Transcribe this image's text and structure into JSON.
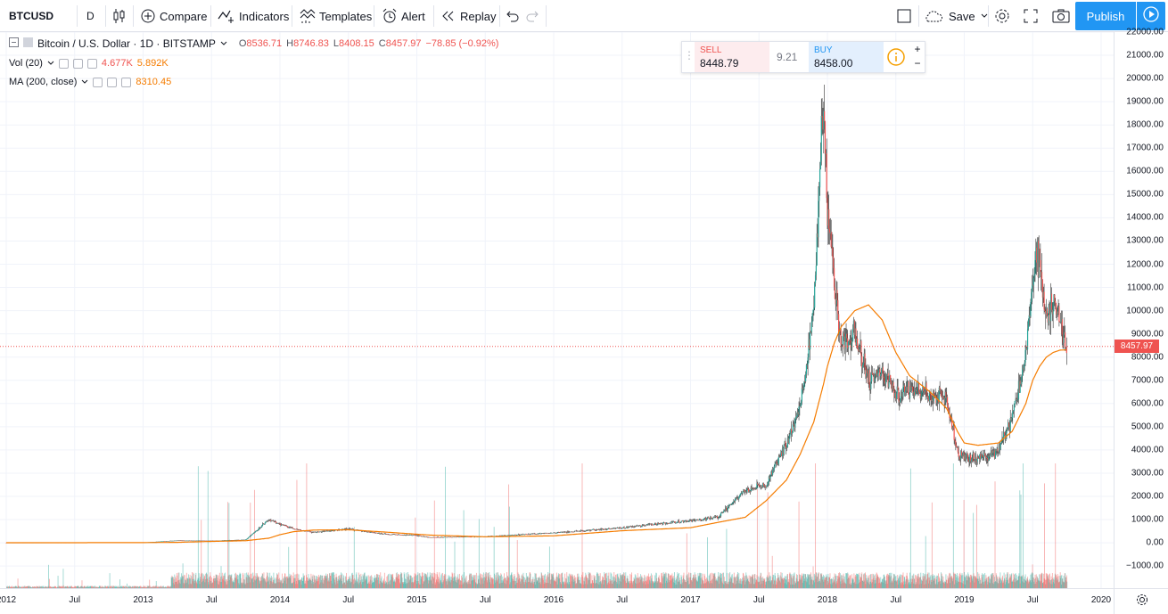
{
  "toolbar": {
    "symbol": "BTCUSD",
    "interval": "D",
    "compare": "Compare",
    "indicators": "Indicators",
    "templates": "Templates",
    "alert": "Alert",
    "replay": "Replay",
    "save": "Save",
    "publish": "Publish"
  },
  "legend": {
    "title": "Bitcoin / U.S. Dollar · 1D · BITSTAMP",
    "o_label": "O",
    "open": "8536.71",
    "h_label": "H",
    "high": "8746.83",
    "l_label": "L",
    "low": "8408.15",
    "c_label": "C",
    "close": "8457.97",
    "change": "−78.85 (−0.92%)",
    "vol_label": "Vol (20)",
    "vol_value": "4.677K",
    "vol_ma": "5.892K",
    "ma_label": "MA (200, close)",
    "ma_value": "8310.45"
  },
  "trade_panel": {
    "sell_label": "SELL",
    "sell_price": "8448.79",
    "spread": "9.21",
    "buy_label": "BUY",
    "buy_price": "8458.00",
    "plus": "+",
    "minus": "−"
  },
  "last_price_label": "8457.97",
  "colors": {
    "up": "#26a69a",
    "down": "#ef5350",
    "ma": "#f57c00",
    "accent": "#2196f3"
  },
  "chart_data": {
    "type": "line",
    "title": "Bitcoin / U.S. Dollar · 1D · BITSTAMP",
    "x_ticks": [
      "2012",
      "Jul",
      "2013",
      "Jul",
      "2014",
      "Jul",
      "2015",
      "Jul",
      "2016",
      "Jul",
      "2017",
      "Jul",
      "2018",
      "Jul",
      "2019",
      "Jul",
      "2020"
    ],
    "y_ticks": [
      "22000.00",
      "21000.00",
      "20000.00",
      "19000.00",
      "18000.00",
      "17000.00",
      "16000.00",
      "15000.00",
      "14000.00",
      "13000.00",
      "12000.00",
      "11000.00",
      "10000.00",
      "9000.00",
      "8000.00",
      "7000.00",
      "6000.00",
      "5000.00",
      "4000.00",
      "3000.00",
      "2000.00",
      "1000.00",
      "0.00",
      "−1000.00"
    ],
    "ylim": [
      -1000,
      22000
    ],
    "x": [
      2012.0,
      2012.5,
      2013.0,
      2013.25,
      2013.5,
      2013.75,
      2013.92,
      2014.0,
      2014.1,
      2014.25,
      2014.5,
      2014.75,
      2015.0,
      2015.1,
      2015.5,
      2016.0,
      2016.5,
      2017.0,
      2017.2,
      2017.4,
      2017.55,
      2017.7,
      2017.8,
      2017.9,
      2017.97,
      2018.0,
      2018.05,
      2018.1,
      2018.2,
      2018.3,
      2018.4,
      2018.5,
      2018.6,
      2018.75,
      2018.87,
      2018.95,
      2019.0,
      2019.1,
      2019.25,
      2019.35,
      2019.45,
      2019.5,
      2019.55,
      2019.6,
      2019.65,
      2019.7,
      2019.75
    ],
    "series": [
      {
        "name": "BTCUSD",
        "values": [
          5,
          7,
          13,
          100,
          90,
          130,
          1000,
          800,
          600,
          450,
          600,
          380,
          320,
          230,
          270,
          430,
          650,
          960,
          1100,
          2300,
          2500,
          4300,
          5800,
          10000,
          19000,
          14000,
          11000,
          8500,
          9000,
          7000,
          7500,
          6400,
          6600,
          6400,
          6300,
          3800,
          3700,
          3600,
          4000,
          5300,
          8000,
          11500,
          12500,
          9500,
          10500,
          9500,
          8458
        ]
      },
      {
        "name": "MA (200, close)",
        "values": [
          5,
          5,
          9,
          20,
          60,
          90,
          200,
          350,
          480,
          550,
          560,
          470,
          370,
          330,
          260,
          300,
          520,
          650,
          880,
          1100,
          1800,
          2700,
          3800,
          5200,
          6800,
          7600,
          8600,
          9300,
          10000,
          10250,
          9600,
          8200,
          7200,
          6500,
          5800,
          4800,
          4300,
          4200,
          4300,
          4800,
          6000,
          7000,
          7600,
          8000,
          8200,
          8300,
          8310
        ]
      }
    ],
    "volume_note": "per-bar volume histogram along bottom of price pane"
  }
}
